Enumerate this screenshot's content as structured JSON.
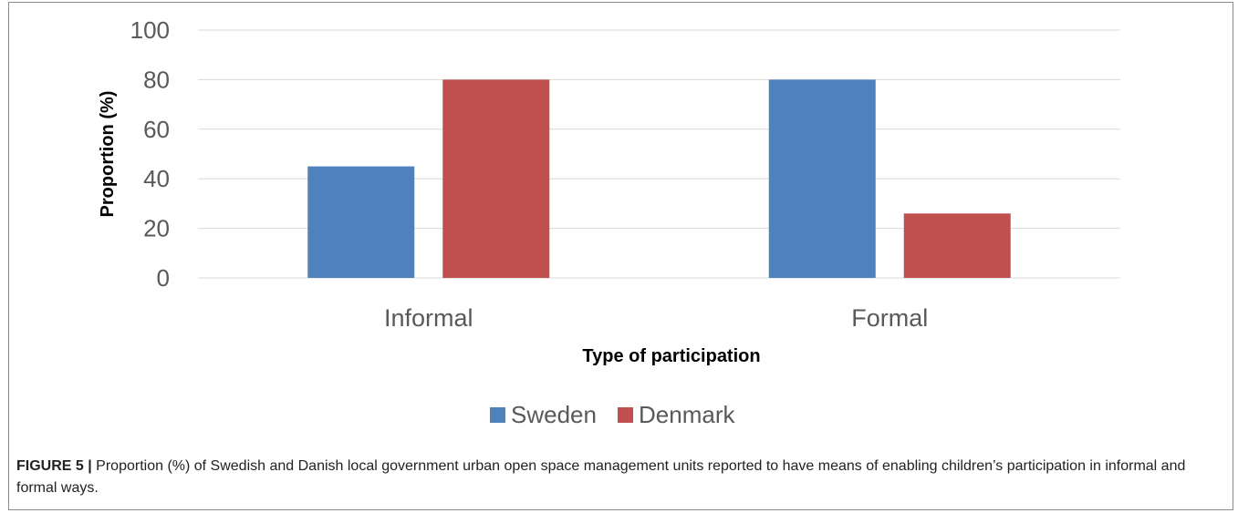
{
  "chart_data": {
    "type": "bar",
    "categories": [
      "Informal",
      "Formal"
    ],
    "series": [
      {
        "name": "Sweden",
        "values": [
          45,
          80
        ],
        "color": "#4f81bd"
      },
      {
        "name": "Denmark",
        "values": [
          80,
          26
        ],
        "color": "#c0504d"
      }
    ],
    "xlabel": "Type of participation",
    "ylabel": "Proportion (%)",
    "ylim": [
      0,
      100
    ],
    "yticks": [
      0,
      20,
      40,
      60,
      80,
      100
    ],
    "grid": true,
    "legend": "bottom-center"
  },
  "caption": {
    "label": "FIGURE 5 |",
    "text": "Proportion (%) of Swedish and Danish local government urban open space management units reported to have means of enabling children’s participation in informal and formal ways."
  }
}
